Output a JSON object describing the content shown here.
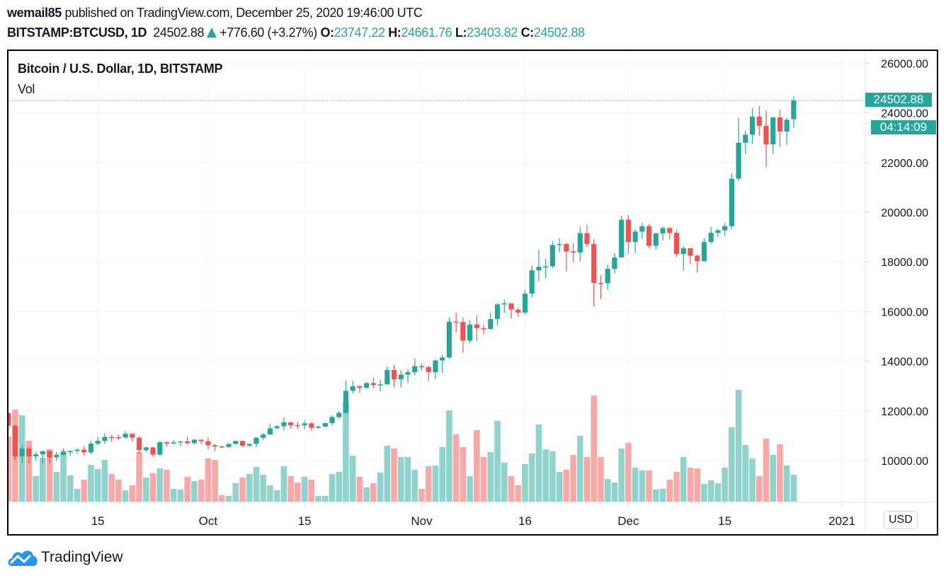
{
  "header": {
    "author": "wemail85",
    "published_text": "published on TradingView.com, December 25, 2020 19:46:00 UTC",
    "symbol": "BITSTAMP:BTCUSD, 1D",
    "last": "24502.88",
    "change": "+776.60 (+3.27%)",
    "o_label": "O:",
    "o": "23747.22",
    "h_label": "H:",
    "h": "24661.76",
    "l_label": "L:",
    "l": "23403.82",
    "c_label": "C:",
    "c": "24502.88",
    "direction_icon": "triangle-up-icon"
  },
  "legend": {
    "title": "Bitcoin / U.S. Dollar, 1D, BITSTAMP",
    "indicator": "Vol"
  },
  "price_axis": {
    "currency": "USD",
    "last_price_label": "24502.88",
    "countdown": "04:14:09"
  },
  "footer": {
    "brand": "TradingView",
    "logo_icon": "tradingview-cloud-icon"
  },
  "colors": {
    "up": "#26a69a",
    "down": "#ef5350",
    "up_volume": "#92d2cc",
    "down_volume": "#f7a9a7",
    "grid": "#f0f3fa",
    "last_price_line": "#26a69a"
  },
  "chart_data": {
    "type": "candlestick",
    "title": "Bitcoin / U.S. Dollar, 1D, BITSTAMP",
    "ylim": [
      8300,
      26500
    ],
    "grid": true,
    "y_ticks": [
      10000,
      12000,
      14000,
      16000,
      18000,
      20000,
      22000,
      24000,
      26000
    ],
    "y_tick_labels": [
      "10000.00",
      "12000.00",
      "14000.00",
      "16000.00",
      "18000.00",
      "20000.00",
      "22000.00",
      "24000.00",
      "26000.00"
    ],
    "x_ticks": [
      {
        "date": "2020-09-15",
        "label": "15"
      },
      {
        "date": "2020-10-01",
        "label": "Oct"
      },
      {
        "date": "2020-10-15",
        "label": "15"
      },
      {
        "date": "2020-11-01",
        "label": "Nov"
      },
      {
        "date": "2020-11-16",
        "label": "16"
      },
      {
        "date": "2020-12-01",
        "label": "Dec"
      },
      {
        "date": "2020-12-15",
        "label": "15"
      },
      {
        "date": "2021-01-01",
        "label": "2021"
      }
    ],
    "columns": [
      "date",
      "open",
      "high",
      "low",
      "close",
      "volume_relative"
    ],
    "candles": [
      [
        "2020-09-02",
        11920,
        11950,
        11200,
        11400,
        18400
      ],
      [
        "2020-09-03",
        11400,
        11460,
        10000,
        10170,
        26000
      ],
      [
        "2020-09-04",
        10170,
        10630,
        9900,
        10480,
        24400
      ],
      [
        "2020-09-05",
        10480,
        10560,
        9880,
        10170,
        17200
      ],
      [
        "2020-09-06",
        10170,
        10350,
        10000,
        10250,
        7200
      ],
      [
        "2020-09-07",
        10250,
        10400,
        9880,
        10370,
        12400
      ],
      [
        "2020-09-08",
        10370,
        10430,
        9880,
        10130,
        14800
      ],
      [
        "2020-09-09",
        10130,
        10350,
        9990,
        10230,
        8400
      ],
      [
        "2020-09-10",
        10230,
        10500,
        10200,
        10340,
        14400
      ],
      [
        "2020-09-11",
        10340,
        10400,
        10200,
        10390,
        7400
      ],
      [
        "2020-09-12",
        10390,
        10480,
        10270,
        10440,
        3600
      ],
      [
        "2020-09-13",
        10440,
        10580,
        10200,
        10330,
        6200
      ],
      [
        "2020-09-14",
        10330,
        10800,
        10260,
        10680,
        10400
      ],
      [
        "2020-09-15",
        10680,
        10950,
        10620,
        10790,
        9200
      ],
      [
        "2020-09-16",
        10790,
        11100,
        10680,
        10950,
        11800
      ],
      [
        "2020-09-17",
        10950,
        11040,
        10750,
        10940,
        7800
      ],
      [
        "2020-09-18",
        10940,
        11040,
        10820,
        10930,
        6200
      ],
      [
        "2020-09-19",
        10930,
        11180,
        10890,
        11080,
        3200
      ],
      [
        "2020-09-20",
        11080,
        11090,
        10760,
        10920,
        4600
      ],
      [
        "2020-09-21",
        10920,
        10990,
        10290,
        10420,
        14000
      ],
      [
        "2020-09-22",
        10420,
        10560,
        10350,
        10530,
        6800
      ],
      [
        "2020-09-23",
        10530,
        10560,
        10140,
        10240,
        8000
      ],
      [
        "2020-09-24",
        10240,
        10790,
        10190,
        10740,
        9400
      ],
      [
        "2020-09-25",
        10740,
        10780,
        10550,
        10690,
        9000
      ],
      [
        "2020-09-26",
        10690,
        10820,
        10650,
        10730,
        3600
      ],
      [
        "2020-09-27",
        10730,
        10800,
        10580,
        10770,
        3400
      ],
      [
        "2020-09-28",
        10770,
        10960,
        10640,
        10700,
        7000
      ],
      [
        "2020-09-29",
        10700,
        10860,
        10650,
        10840,
        5800
      ],
      [
        "2020-09-30",
        10840,
        10850,
        10660,
        10780,
        6200
      ],
      [
        "2020-10-01",
        10780,
        10930,
        10440,
        10620,
        12200
      ],
      [
        "2020-10-02",
        10620,
        10670,
        10380,
        10570,
        11800
      ],
      [
        "2020-10-03",
        10570,
        10600,
        10510,
        10550,
        1800
      ],
      [
        "2020-10-04",
        10550,
        10700,
        10510,
        10670,
        1600
      ],
      [
        "2020-10-05",
        10670,
        10800,
        10640,
        10790,
        5200
      ],
      [
        "2020-10-06",
        10790,
        10800,
        10540,
        10600,
        6800
      ],
      [
        "2020-10-07",
        10600,
        10690,
        10560,
        10670,
        7800
      ],
      [
        "2020-10-08",
        10670,
        10950,
        10540,
        10920,
        9800
      ],
      [
        "2020-10-09",
        10920,
        11100,
        10830,
        11050,
        7600
      ],
      [
        "2020-10-10",
        11050,
        11480,
        11040,
        11300,
        4600
      ],
      [
        "2020-10-11",
        11300,
        11430,
        11270,
        11380,
        3200
      ],
      [
        "2020-10-12",
        11380,
        11730,
        11200,
        11540,
        10000
      ],
      [
        "2020-10-13",
        11540,
        11560,
        11290,
        11420,
        7200
      ],
      [
        "2020-10-14",
        11430,
        11550,
        11280,
        11420,
        5400
      ],
      [
        "2020-10-15",
        11420,
        11630,
        11260,
        11500,
        7000
      ],
      [
        "2020-10-16",
        11500,
        11550,
        11200,
        11320,
        6200
      ],
      [
        "2020-10-17",
        11320,
        11400,
        11290,
        11370,
        1600
      ],
      [
        "2020-10-18",
        11370,
        11500,
        11340,
        11510,
        1600
      ],
      [
        "2020-10-19",
        11510,
        11830,
        11420,
        11750,
        7800
      ],
      [
        "2020-10-20",
        11750,
        12000,
        11660,
        11920,
        8400
      ],
      [
        "2020-10-21",
        11920,
        13220,
        11890,
        12810,
        28200
      ],
      [
        "2020-10-22",
        12810,
        13200,
        12700,
        12990,
        13000
      ],
      [
        "2020-10-23",
        12990,
        13030,
        12730,
        12930,
        7000
      ],
      [
        "2020-10-24",
        12930,
        13170,
        12900,
        13120,
        4000
      ],
      [
        "2020-10-25",
        13120,
        13350,
        12900,
        13040,
        5200
      ],
      [
        "2020-10-26",
        13040,
        13240,
        12780,
        13070,
        8200
      ],
      [
        "2020-10-27",
        13070,
        13790,
        13050,
        13650,
        15800
      ],
      [
        "2020-10-28",
        13650,
        13860,
        12950,
        13270,
        15000
      ],
      [
        "2020-10-29",
        13270,
        13640,
        12950,
        13460,
        12600
      ],
      [
        "2020-10-30",
        13460,
        13680,
        13130,
        13560,
        12600
      ],
      [
        "2020-10-31",
        13560,
        14100,
        13430,
        13800,
        9000
      ],
      [
        "2020-11-01",
        13800,
        13900,
        13620,
        13760,
        3600
      ],
      [
        "2020-11-02",
        13760,
        13830,
        13210,
        13560,
        10000
      ],
      [
        "2020-11-03",
        13560,
        14070,
        13290,
        14030,
        10200
      ],
      [
        "2020-11-04",
        14030,
        14250,
        13530,
        14150,
        15400
      ],
      [
        "2020-11-05",
        14150,
        15770,
        14100,
        15590,
        25800
      ],
      [
        "2020-11-06",
        15590,
        15960,
        15170,
        15580,
        19000
      ],
      [
        "2020-11-07",
        15580,
        15760,
        14340,
        14830,
        15400
      ],
      [
        "2020-11-08",
        14830,
        15650,
        14720,
        15480,
        7200
      ],
      [
        "2020-11-09",
        15480,
        15840,
        14810,
        15330,
        20200
      ],
      [
        "2020-11-10",
        15330,
        15470,
        15080,
        15300,
        12600
      ],
      [
        "2020-11-11",
        15300,
        15960,
        15280,
        15700,
        14000
      ],
      [
        "2020-11-12",
        15700,
        16340,
        15450,
        16290,
        22800
      ],
      [
        "2020-11-13",
        16290,
        16480,
        15950,
        16330,
        11000
      ],
      [
        "2020-11-14",
        16330,
        16340,
        15720,
        16080,
        7200
      ],
      [
        "2020-11-15",
        16080,
        16150,
        15780,
        15960,
        4600
      ],
      [
        "2020-11-16",
        15960,
        16880,
        15880,
        16720,
        10600
      ],
      [
        "2020-11-17",
        16720,
        17860,
        16560,
        17660,
        13600
      ],
      [
        "2020-11-18",
        17660,
        18490,
        17210,
        17800,
        21800
      ],
      [
        "2020-11-19",
        17800,
        18120,
        17350,
        17820,
        14800
      ],
      [
        "2020-11-20",
        17820,
        18820,
        17760,
        18680,
        14200
      ],
      [
        "2020-11-21",
        18680,
        18960,
        18380,
        18720,
        8400
      ],
      [
        "2020-11-22",
        18720,
        18780,
        17620,
        18420,
        9000
      ],
      [
        "2020-11-23",
        18420,
        18760,
        18000,
        18380,
        13200
      ],
      [
        "2020-11-24",
        18380,
        19420,
        18020,
        19160,
        18600
      ],
      [
        "2020-11-25",
        19160,
        19490,
        18600,
        18720,
        12600
      ],
      [
        "2020-11-26",
        18720,
        18920,
        16200,
        17150,
        30000
      ],
      [
        "2020-11-27",
        17150,
        17470,
        16500,
        17140,
        12600
      ],
      [
        "2020-11-28",
        17140,
        17900,
        16880,
        17720,
        6400
      ],
      [
        "2020-11-29",
        17720,
        18350,
        17530,
        18180,
        5400
      ],
      [
        "2020-11-30",
        18180,
        19860,
        18180,
        19700,
        15000
      ],
      [
        "2020-12-01",
        19700,
        19890,
        18330,
        18800,
        16600
      ],
      [
        "2020-12-02",
        18800,
        19330,
        18350,
        19220,
        9600
      ],
      [
        "2020-12-03",
        19220,
        19580,
        18930,
        19440,
        8800
      ],
      [
        "2020-12-04",
        19440,
        19530,
        18570,
        18650,
        8800
      ],
      [
        "2020-12-05",
        18650,
        19170,
        18500,
        19150,
        3400
      ],
      [
        "2020-12-06",
        19150,
        19420,
        18860,
        19360,
        3600
      ],
      [
        "2020-12-07",
        19360,
        19420,
        18920,
        19170,
        6200
      ],
      [
        "2020-12-08",
        19170,
        19290,
        18200,
        18320,
        8400
      ],
      [
        "2020-12-09",
        18320,
        18630,
        17650,
        18550,
        12600
      ],
      [
        "2020-12-10",
        18550,
        18560,
        17920,
        18250,
        9600
      ],
      [
        "2020-12-11",
        18250,
        18290,
        17580,
        18030,
        9400
      ],
      [
        "2020-12-12",
        18030,
        18950,
        18020,
        18800,
        5000
      ],
      [
        "2020-12-13",
        18800,
        19410,
        18730,
        19170,
        6000
      ],
      [
        "2020-12-14",
        19170,
        19340,
        19000,
        19270,
        5200
      ],
      [
        "2020-12-15",
        19270,
        19570,
        19050,
        19440,
        9600
      ],
      [
        "2020-12-16",
        19440,
        21560,
        19300,
        21350,
        21000
      ],
      [
        "2020-12-17",
        21350,
        23800,
        21250,
        22800,
        31600
      ],
      [
        "2020-12-18",
        22800,
        23290,
        22350,
        23120,
        16000
      ],
      [
        "2020-12-19",
        23120,
        24200,
        22760,
        23850,
        12200
      ],
      [
        "2020-12-20",
        23850,
        24270,
        23080,
        23480,
        7200
      ],
      [
        "2020-12-21",
        23480,
        24100,
        21820,
        22730,
        17800
      ],
      [
        "2020-12-22",
        22730,
        23820,
        22350,
        23820,
        13200
      ],
      [
        "2020-12-23",
        23820,
        24120,
        22620,
        23250,
        16200
      ],
      [
        "2020-12-24",
        23250,
        23800,
        22720,
        23720,
        10200
      ],
      [
        "2020-12-25",
        23747.22,
        24661.76,
        23403.82,
        24502.88,
        7600
      ]
    ],
    "last_price": 24502.88
  }
}
